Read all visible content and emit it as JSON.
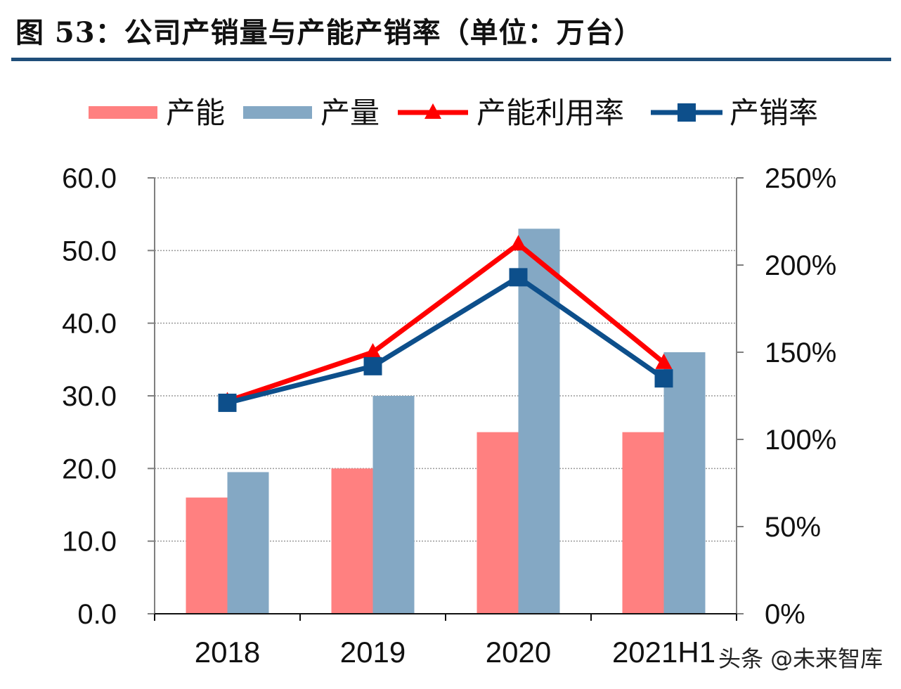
{
  "figure_title": "图 53：公司产销量与产能产销率（单位：万台）",
  "watermark": "头条 @未来智库",
  "colors": {
    "capacity": "#ff8080",
    "output": "#84a8c4",
    "utilization": "#ff0000",
    "sales_rate": "#0d4f8b",
    "title_rule": "#1f4e79"
  },
  "chart_data": {
    "type": "bar",
    "categories": [
      "2018",
      "2019",
      "2020",
      "2021H1"
    ],
    "series": [
      {
        "name": "产能",
        "kind": "bar",
        "axis": "left",
        "values": [
          16.0,
          20.0,
          25.0,
          25.0
        ]
      },
      {
        "name": "产量",
        "kind": "bar",
        "axis": "left",
        "values": [
          19.5,
          30.0,
          53.0,
          36.0
        ]
      },
      {
        "name": "产能利用率",
        "kind": "line",
        "marker": "triangle",
        "axis": "right",
        "values": [
          122,
          150,
          212,
          144
        ]
      },
      {
        "name": "产销率",
        "kind": "line",
        "marker": "square",
        "axis": "right",
        "values": [
          121,
          142,
          193,
          135
        ]
      }
    ],
    "left_axis": {
      "ylim": [
        0,
        60
      ],
      "ticks": [
        "0.0",
        "10.0",
        "20.0",
        "30.0",
        "40.0",
        "50.0",
        "60.0"
      ]
    },
    "right_axis": {
      "ylim": [
        0,
        250
      ],
      "ticks": [
        "0%",
        "50%",
        "100%",
        "150%",
        "200%",
        "250%"
      ]
    },
    "grid": true,
    "legend_position": "top"
  }
}
